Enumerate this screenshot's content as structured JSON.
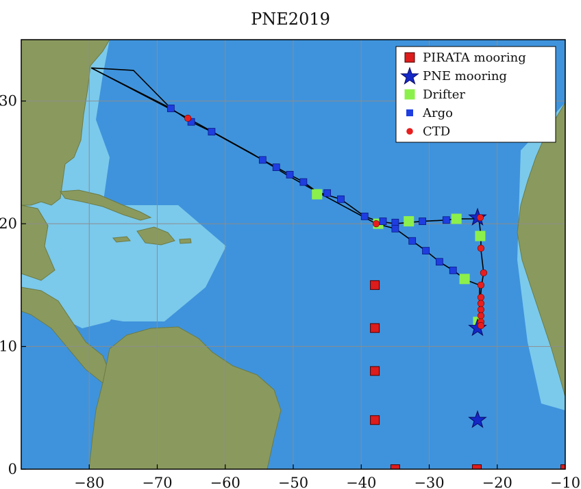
{
  "title": "PNE2019",
  "map": {
    "xlim": [
      -90,
      -10
    ],
    "ylim": [
      0,
      35
    ],
    "xticks": [
      -80,
      -70,
      -60,
      -50,
      -40,
      -30,
      -20,
      -10
    ],
    "yticks": [
      0,
      10,
      20,
      30
    ],
    "grid": true,
    "colors": {
      "ocean": "#3f93dc",
      "shelf": "#86d3ee",
      "land": "#8a9a5e",
      "track": "#000000",
      "pirata": "#dd1c1c",
      "pne": "#1428c8",
      "drifter": "#8cf04c",
      "argo": "#1e3ee0",
      "ctd": "#e81e1e"
    }
  },
  "legend": {
    "position": "top-right",
    "items": [
      {
        "label": "PIRATA mooring",
        "marker": "square",
        "color": "#dd1c1c"
      },
      {
        "label": "PNE mooring",
        "marker": "star",
        "color": "#1428c8"
      },
      {
        "label": "Drifter",
        "marker": "square",
        "color": "#8cf04c"
      },
      {
        "label": "Argo",
        "marker": "small-square",
        "color": "#1e3ee0"
      },
      {
        "label": "CTD",
        "marker": "circle",
        "color": "#e81e1e"
      }
    ]
  },
  "tracks": [
    {
      "points": [
        [
          -79.7,
          32.7
        ],
        [
          -68.0,
          29.4
        ],
        [
          -65.0,
          28.3
        ],
        [
          -62.0,
          27.5
        ],
        [
          -54.5,
          25.2
        ],
        [
          -52.5,
          24.6
        ],
        [
          -50.5,
          24.0
        ],
        [
          -48.5,
          23.4
        ],
        [
          -46.5,
          22.6
        ],
        [
          -43.0,
          22.0
        ],
        [
          -39.5,
          20.6
        ],
        [
          -37.5,
          20.2
        ],
        [
          -35.0,
          20.0
        ],
        [
          -33.0,
          20.1
        ],
        [
          -31.0,
          20.2
        ],
        [
          -27.5,
          20.3
        ],
        [
          -26.0,
          20.4
        ],
        [
          -22.7,
          20.4
        ],
        [
          -22.4,
          19.0
        ],
        [
          -22.4,
          17.9
        ],
        [
          -22.0,
          16.0
        ],
        [
          -22.3,
          15.0
        ],
        [
          -22.6,
          13.2
        ],
        [
          -22.6,
          11.5
        ]
      ]
    },
    {
      "points": [
        [
          -79.7,
          32.7
        ],
        [
          -73.5,
          32.5
        ],
        [
          -68.0,
          29.4
        ]
      ]
    },
    {
      "points": [
        [
          -37.8,
          20.0
        ],
        [
          -46.5,
          22.6
        ],
        [
          -51.0,
          24.0
        ],
        [
          -56.0,
          25.7
        ],
        [
          -65.5,
          28.6
        ],
        [
          -79.7,
          32.7
        ]
      ]
    },
    {
      "points": [
        [
          -37.8,
          20.0
        ],
        [
          -35.0,
          19.6
        ],
        [
          -32.5,
          18.6
        ],
        [
          -30.5,
          17.8
        ],
        [
          -28.5,
          16.9
        ],
        [
          -26.5,
          16.2
        ],
        [
          -24.5,
          15.4
        ],
        [
          -22.6,
          15.0
        ],
        [
          -22.6,
          11.5
        ]
      ]
    }
  ],
  "pirata_moorings": [
    [
      -38.0,
      15.0
    ],
    [
      -38.0,
      11.5
    ],
    [
      -38.0,
      8.0
    ],
    [
      -38.0,
      4.0
    ],
    [
      -35.0,
      0.0
    ],
    [
      -23.0,
      0.0
    ],
    [
      -10.0,
      0.0
    ]
  ],
  "pne_moorings": [
    [
      -22.9,
      20.5
    ],
    [
      -22.9,
      11.5
    ],
    [
      -22.9,
      4.0
    ]
  ],
  "drifters": [
    [
      -46.5,
      22.4
    ],
    [
      -37.5,
      20.0
    ],
    [
      -33.0,
      20.2
    ],
    [
      -26.0,
      20.4
    ],
    [
      -22.5,
      19.0
    ],
    [
      -24.8,
      15.5
    ],
    [
      -22.8,
      12.0
    ]
  ],
  "argo": [
    [
      -68.0,
      29.4
    ],
    [
      -65.0,
      28.3
    ],
    [
      -62.0,
      27.5
    ],
    [
      -54.5,
      25.2
    ],
    [
      -52.5,
      24.6
    ],
    [
      -50.5,
      24.0
    ],
    [
      -48.5,
      23.4
    ],
    [
      -45.0,
      22.5
    ],
    [
      -43.0,
      22.0
    ],
    [
      -39.5,
      20.6
    ],
    [
      -36.8,
      20.2
    ],
    [
      -35.0,
      20.1
    ],
    [
      -31.0,
      20.2
    ],
    [
      -27.5,
      20.3
    ],
    [
      -35.0,
      19.6
    ],
    [
      -32.5,
      18.6
    ],
    [
      -30.5,
      17.8
    ],
    [
      -28.5,
      16.9
    ],
    [
      -26.5,
      16.2
    ]
  ],
  "ctd": [
    [
      -65.5,
      28.6
    ],
    [
      -37.8,
      20.0
    ],
    [
      -22.5,
      20.5
    ],
    [
      -22.4,
      18.0
    ],
    [
      -22.0,
      16.0
    ],
    [
      -22.4,
      15.0
    ],
    [
      -22.4,
      14.0
    ],
    [
      -22.4,
      13.5
    ],
    [
      -22.4,
      13.0
    ],
    [
      -22.4,
      12.5
    ],
    [
      -22.4,
      12.0
    ],
    [
      -22.4,
      11.7
    ]
  ]
}
